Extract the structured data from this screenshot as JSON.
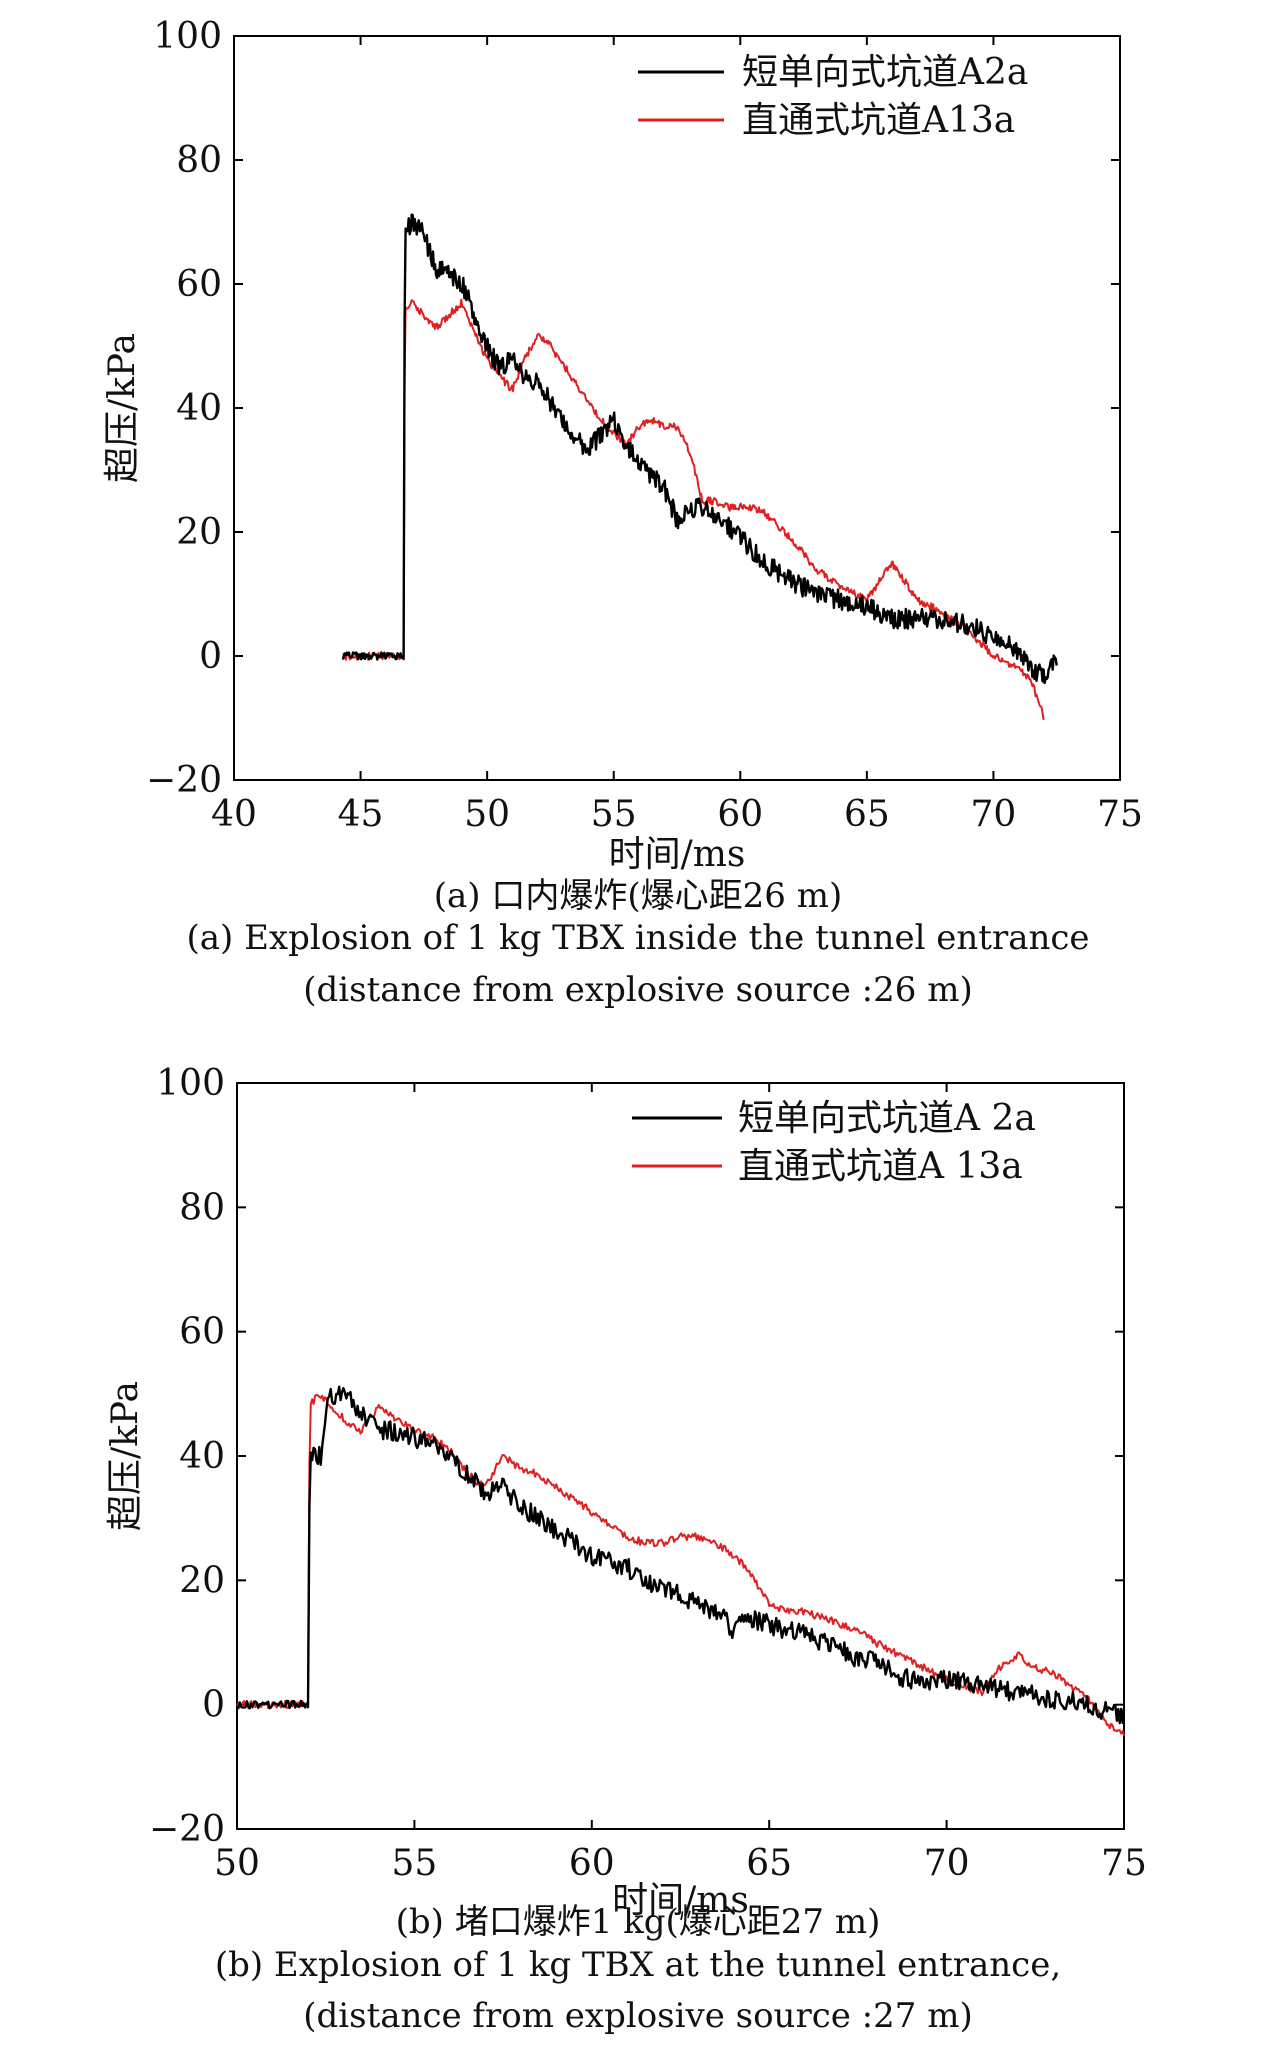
{
  "chart_data": [
    {
      "type": "line",
      "panel": "(a)",
      "xlabel": "时间/ms",
      "ylabel": "超压/kPa",
      "xlim": [
        40,
        75
      ],
      "ylim": [
        -20,
        100
      ],
      "xticks": [
        40,
        45,
        50,
        55,
        60,
        65,
        70,
        75
      ],
      "yticks": [
        -20,
        0,
        20,
        40,
        60,
        80,
        100
      ],
      "xtick_labels": [
        "40",
        "45",
        "50",
        "55",
        "60",
        "65",
        "70",
        "75"
      ],
      "ytick_labels": [
        "−20",
        "0",
        "20",
        "40",
        "60",
        "80",
        "100"
      ],
      "legend_position": "top-right",
      "grid": false,
      "caption_cn": "(a) 口内爆炸(爆心距26 m)",
      "caption_en_1": "(a) Explosion of 1 kg TBX inside the tunnel entrance",
      "caption_en_2": "(distance from explosive source :26 m)",
      "series": [
        {
          "name": "短单向式坑道A2a",
          "color": "#000000",
          "x": [
            44.3,
            46.7,
            46.75,
            47.0,
            47.5,
            48.0,
            48.5,
            49.0,
            49.5,
            50.0,
            50.5,
            51.0,
            51.5,
            52.0,
            52.5,
            53.0,
            53.5,
            54.0,
            54.5,
            55.0,
            55.5,
            56.0,
            56.5,
            57.0,
            57.5,
            58.0,
            58.5,
            59.0,
            59.5,
            60.0,
            61.0,
            62.0,
            63.0,
            64.0,
            65.0,
            66.0,
            67.0,
            68.0,
            69.0,
            70.0,
            71.0,
            71.5,
            72.0,
            72.5
          ],
          "y": [
            0,
            0,
            68,
            70,
            68,
            62,
            62,
            60,
            55,
            50,
            46,
            48,
            45,
            44,
            41,
            38,
            35,
            33,
            36,
            38,
            34,
            31,
            29,
            27,
            22,
            24,
            24,
            22,
            21,
            19,
            15,
            12,
            10,
            9,
            8,
            6,
            6,
            6,
            5,
            3,
            1,
            -2,
            -3,
            0
          ]
        },
        {
          "name": "直通式坑道A13a",
          "color": "#e02020",
          "x": [
            44.3,
            46.7,
            46.75,
            47.0,
            47.5,
            48.0,
            48.5,
            49.0,
            49.5,
            50.0,
            50.5,
            51.0,
            51.5,
            52.0,
            52.5,
            53.0,
            53.5,
            54.0,
            54.5,
            55.0,
            55.5,
            56.0,
            56.5,
            57.0,
            57.5,
            58.0,
            58.5,
            59.0,
            59.5,
            60.0,
            60.5,
            61.0,
            62.0,
            63.0,
            64.0,
            65.0,
            65.5,
            66.0,
            66.5,
            67.0,
            68.0,
            69.0,
            70.0,
            71.0,
            71.5,
            72.0
          ],
          "y": [
            0,
            0,
            56,
            57,
            55,
            53,
            55,
            57,
            52,
            48,
            45,
            43,
            48,
            52,
            50,
            47,
            44,
            41,
            38,
            36,
            34,
            37,
            38,
            37,
            37,
            33,
            25,
            25,
            24,
            24,
            24,
            23,
            19,
            14,
            11,
            9,
            12,
            15,
            12,
            9,
            7,
            4,
            0,
            -2,
            -4,
            -10
          ]
        }
      ]
    },
    {
      "type": "line",
      "panel": "(b)",
      "xlabel": "时间/ms",
      "ylabel": "超压/kPa",
      "xlim": [
        50,
        75
      ],
      "ylim": [
        -20,
        100
      ],
      "xticks": [
        50,
        55,
        60,
        65,
        70,
        75
      ],
      "yticks": [
        -20,
        0,
        20,
        40,
        60,
        80,
        100
      ],
      "xtick_labels": [
        "50",
        "55",
        "60",
        "65",
        "70",
        "75"
      ],
      "ytick_labels": [
        "−20",
        "0",
        "20",
        "40",
        "60",
        "80",
        "100"
      ],
      "legend_position": "top-right",
      "grid": false,
      "caption_cn": "(b) 堵口爆炸1 kg(爆心距27 m)",
      "caption_en_1": "(b) Explosion of 1 kg TBX at the tunnel entrance,",
      "caption_en_2": "(distance from explosive source :27 m)",
      "series": [
        {
          "name": "短单向式坑道A 2a",
          "color": "#000000",
          "x": [
            50.0,
            52.0,
            52.05,
            52.4,
            52.6,
            53.0,
            53.5,
            54.0,
            54.5,
            55.0,
            55.5,
            56.0,
            56.5,
            57.0,
            57.5,
            58.0,
            58.5,
            59.0,
            59.5,
            60.0,
            60.5,
            61.0,
            61.5,
            62.0,
            62.5,
            63.0,
            63.5,
            64.0,
            64.5,
            65.0,
            65.5,
            66.0,
            66.5,
            67.0,
            67.5,
            68.0,
            68.5,
            69.0,
            69.5,
            70.0,
            71.0,
            72.0,
            73.0,
            74.0,
            74.5,
            75.0
          ],
          "y": [
            0,
            0,
            40,
            40,
            50,
            50,
            47,
            44,
            44,
            43,
            42,
            40,
            37,
            34,
            35,
            32,
            30,
            28,
            26,
            24,
            23,
            22,
            20,
            19,
            18,
            16,
            15,
            12,
            14,
            13,
            12,
            12,
            10,
            9,
            7,
            7,
            5,
            4,
            4,
            4,
            3,
            2,
            1,
            0,
            -1,
            -2
          ]
        },
        {
          "name": "直通式坑道A 13a",
          "color": "#e02020",
          "x": [
            50.0,
            52.0,
            52.05,
            52.3,
            53.0,
            53.5,
            54.0,
            54.5,
            55.0,
            55.5,
            56.0,
            56.5,
            57.0,
            57.5,
            58.0,
            58.5,
            59.0,
            59.5,
            60.0,
            60.5,
            61.0,
            61.5,
            62.0,
            62.5,
            63.0,
            63.5,
            64.0,
            64.5,
            65.0,
            65.5,
            66.0,
            66.5,
            67.0,
            67.5,
            68.0,
            69.0,
            70.0,
            71.0,
            71.5,
            72.0,
            72.5,
            73.0,
            73.5,
            74.0,
            74.5,
            75.0
          ],
          "y": [
            0,
            0,
            48,
            50,
            46,
            44,
            48,
            46,
            44,
            43,
            41,
            37,
            35,
            40,
            38,
            37,
            35,
            33,
            31,
            29,
            27,
            26,
            26,
            27,
            27,
            26,
            24,
            21,
            16,
            15,
            15,
            14,
            13,
            12,
            10,
            7,
            4,
            2,
            6,
            8,
            6,
            5,
            3,
            1,
            -3,
            -5
          ]
        }
      ]
    }
  ]
}
